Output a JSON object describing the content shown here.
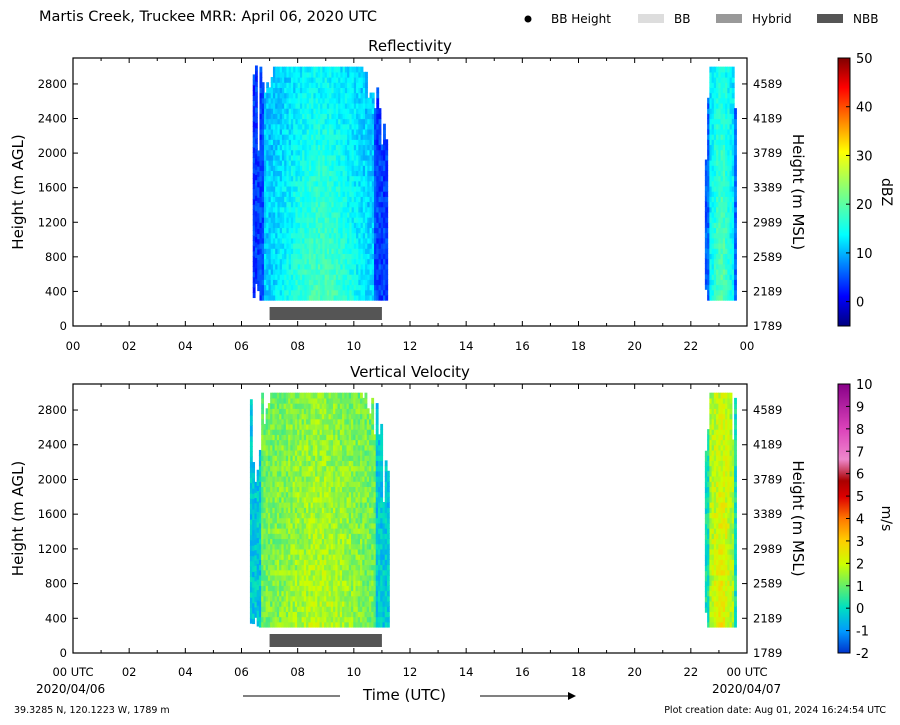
{
  "header": {
    "title": "Martis Creek, Truckee MRR:  April 06, 2020 UTC",
    "legend": [
      {
        "label": "BB Height",
        "symbol": "dot",
        "color": "#000000"
      },
      {
        "label": "BB",
        "symbol": "bar",
        "color": "#dddddd"
      },
      {
        "label": "Hybrid",
        "symbol": "bar",
        "color": "#999999"
      },
      {
        "label": "NBB",
        "symbol": "bar",
        "color": "#555555"
      }
    ]
  },
  "footer": {
    "location": "39.3285 N, 120.1223 W, 1789 m",
    "created": "Plot creation date: Aug 01, 2024 16:24:54 UTC",
    "time_label": "Time (UTC)",
    "date_start": "2020/04/06",
    "date_end": "2020/04/07"
  },
  "chart_data": [
    {
      "type": "heatmap",
      "title": "Reflectivity",
      "ylabel": "Height (m AGL)",
      "ylabel_right": "Height (m MSL)",
      "xlim": [
        0,
        24
      ],
      "x_tick_labels": [
        "00",
        "02",
        "04",
        "06",
        "08",
        "10",
        "12",
        "14",
        "16",
        "18",
        "20",
        "22",
        "00"
      ],
      "ylim": [
        0,
        3100
      ],
      "y_ticks": [
        0,
        400,
        800,
        1200,
        1600,
        2000,
        2400,
        2800
      ],
      "y_ticks_right": [
        "1789",
        "2189",
        "2589",
        "2989",
        "3389",
        "3789",
        "4189",
        "4589"
      ],
      "colorbar": {
        "label": "dBZ",
        "min": -5,
        "max": 50,
        "ticks": [
          0,
          10,
          20,
          30,
          40,
          50
        ],
        "colormap": "jet"
      },
      "echo_regions": [
        {
          "t_start": 6.4,
          "t_end": 11.2,
          "h_bottom": 300,
          "h_top": 3000,
          "typical_value": 10,
          "core_value": 19
        },
        {
          "t_start": 22.5,
          "t_end": 23.6,
          "h_bottom": 300,
          "h_top": 3000,
          "typical_value": 12,
          "core_value": 20
        }
      ],
      "bright_band": [
        {
          "t_start": 7.0,
          "t_end": 11.0,
          "type": "NBB"
        }
      ]
    },
    {
      "type": "heatmap",
      "title": "Vertical Velocity",
      "ylabel": "Height (m AGL)",
      "ylabel_right": "Height (m MSL)",
      "xlim": [
        0,
        24
      ],
      "x_tick_labels": [
        "00 UTC",
        "02",
        "04",
        "06",
        "08",
        "10",
        "12",
        "14",
        "16",
        "18",
        "20",
        "22",
        "00 UTC"
      ],
      "ylim": [
        0,
        3100
      ],
      "y_ticks": [
        0,
        400,
        800,
        1200,
        1600,
        2000,
        2400,
        2800
      ],
      "y_ticks_right": [
        "1789",
        "2189",
        "2589",
        "2989",
        "3389",
        "3789",
        "4189",
        "4589"
      ],
      "colorbar": {
        "label": "m/s",
        "min": -2,
        "max": 10,
        "ticks": [
          -2,
          -1,
          0,
          1,
          2,
          3,
          4,
          5,
          6,
          7,
          8,
          9,
          10
        ],
        "colormap": "velocity"
      },
      "echo_regions": [
        {
          "t_start": 6.3,
          "t_end": 11.2,
          "h_bottom": 300,
          "h_top": 3000,
          "typical_value": 1.0,
          "core_value": 1.8
        },
        {
          "t_start": 22.5,
          "t_end": 23.6,
          "h_bottom": 300,
          "h_top": 3000,
          "typical_value": 1.5,
          "core_value": 2.5
        }
      ],
      "bright_band": [
        {
          "t_start": 7.0,
          "t_end": 11.0,
          "type": "NBB"
        }
      ]
    }
  ]
}
